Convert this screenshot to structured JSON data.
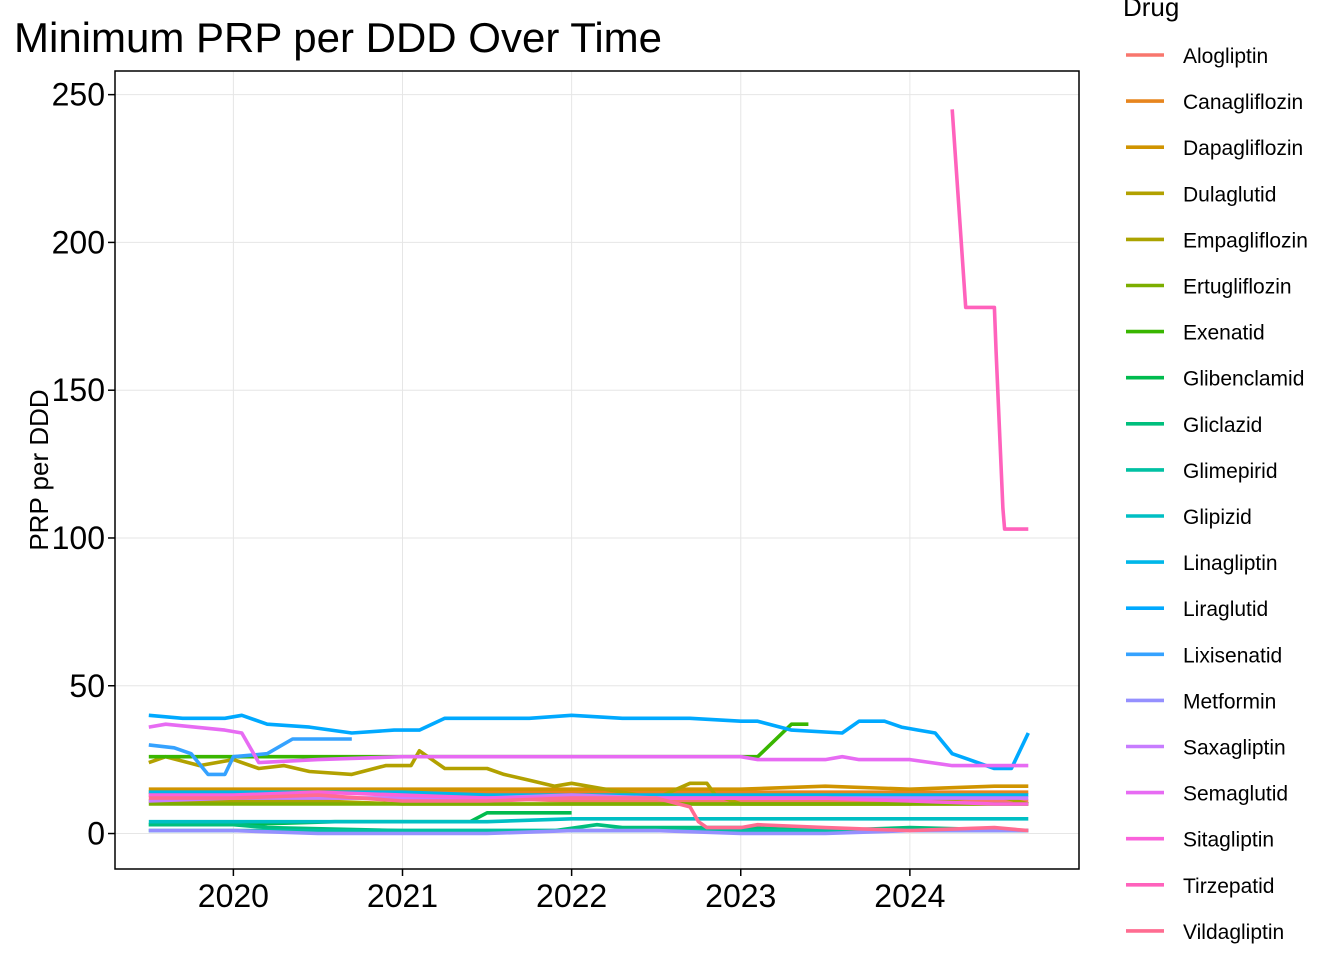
{
  "chart_data": {
    "type": "line",
    "title": "Minimum PRP per DDD Over Time",
    "xlabel": "",
    "ylabel": "PRP per DDD",
    "x_ticks": [
      "2020",
      "2021",
      "2022",
      "2023",
      "2024"
    ],
    "y_ticks": [
      0,
      50,
      100,
      150,
      200,
      250
    ],
    "xlim": [
      2019.3,
      2025.0
    ],
    "ylim": [
      -12,
      258
    ],
    "grid": true,
    "legend": {
      "title": "Drug",
      "position": "right"
    },
    "series": [
      {
        "name": "Alogliptin",
        "color": "#F8766D",
        "x": [
          2019.5,
          2020.0,
          2020.5,
          2021.0,
          2021.5,
          2022.0,
          2022.5,
          2023.0,
          2023.5,
          2024.0,
          2024.7
        ],
        "y": [
          13,
          12,
          12,
          12,
          12,
          11,
          11,
          11,
          11,
          11,
          11
        ]
      },
      {
        "name": "Canagliflozin",
        "color": "#E7851E",
        "x": [
          2019.5,
          2020.0,
          2020.5,
          2021.0,
          2021.5,
          2022.0,
          2022.5,
          2023.0,
          2023.5,
          2024.0,
          2024.7
        ],
        "y": [
          14,
          14,
          14,
          14,
          14,
          14,
          14,
          14,
          14,
          14,
          14
        ]
      },
      {
        "name": "Dapagliflozin",
        "color": "#D09400",
        "x": [
          2019.5,
          2020.0,
          2020.5,
          2021.0,
          2021.5,
          2022.0,
          2022.5,
          2023.0,
          2023.5,
          2024.0,
          2024.5,
          2024.7
        ],
        "y": [
          15,
          15,
          15,
          15,
          15,
          15,
          15,
          15,
          16,
          15,
          16,
          16
        ]
      },
      {
        "name": "Dulaglutid",
        "color": "#B2A100",
        "x": [
          2019.5,
          2019.6,
          2019.8,
          2020.0,
          2020.15,
          2020.3,
          2020.45,
          2020.7,
          2020.9,
          2021.05,
          2021.1,
          2021.25,
          2021.5,
          2021.6,
          2021.75,
          2021.9,
          2022.0,
          2022.5,
          2022.7,
          2022.8,
          2022.85,
          2022.95,
          2023.0,
          2023.5,
          2024.0,
          2024.7
        ],
        "y": [
          24,
          26,
          23,
          25,
          22,
          23,
          21,
          20,
          23,
          23,
          28,
          22,
          22,
          20,
          18,
          16,
          17,
          12,
          17,
          17,
          13,
          11,
          10,
          10,
          10,
          10
        ]
      },
      {
        "name": "Empagliflozin",
        "color": "#ABA300",
        "x": [
          2019.5,
          2020.0,
          2020.5,
          2021.0,
          2021.5,
          2022.0,
          2022.5,
          2023.0,
          2023.5,
          2024.0,
          2024.5,
          2024.7
        ],
        "y": [
          11,
          11,
          11,
          10,
          10,
          10,
          10,
          10,
          10,
          10,
          13,
          10
        ]
      },
      {
        "name": "Ertugliflozin",
        "color": "#7CAE00",
        "x": [
          2019.5,
          2020.0,
          2020.5,
          2021.0,
          2021.5,
          2022.0,
          2022.5,
          2023.0,
          2023.5,
          2024.0,
          2024.7
        ],
        "y": [
          10,
          10,
          10,
          10,
          10,
          10,
          10,
          10,
          10,
          10,
          10
        ]
      },
      {
        "name": "Exenatid",
        "color": "#39B600",
        "x": [
          2019.5,
          2020.0,
          2020.5,
          2021.0,
          2021.5,
          2022.0,
          2022.5,
          2023.0,
          2023.1,
          2023.3,
          2023.4
        ],
        "y": [
          26,
          26,
          26,
          26,
          26,
          26,
          26,
          26,
          26,
          37,
          37
        ]
      },
      {
        "name": "Glibenclamid",
        "color": "#00BB4E",
        "x": [
          2019.5,
          2020.0,
          2020.6,
          2021.0,
          2021.4,
          2021.5,
          2022.0
        ],
        "y": [
          3,
          3,
          4,
          4,
          4,
          7,
          7
        ]
      },
      {
        "name": "Gliclazid",
        "color": "#00BF7D",
        "x": [
          2019.5,
          2020.0,
          2020.2,
          2021.0,
          2021.9,
          2022.15,
          2022.3,
          2023.0,
          2023.5,
          2024.0,
          2024.7
        ],
        "y": [
          3,
          3,
          2,
          1,
          1,
          3,
          2,
          2,
          1,
          2,
          1
        ]
      },
      {
        "name": "Glimepirid",
        "color": "#00C1A3",
        "x": [
          2019.5,
          2020.0,
          2020.5,
          2021.0,
          2021.5,
          2022.0,
          2022.5,
          2023.0,
          2023.5,
          2024.0,
          2024.7
        ],
        "y": [
          1,
          1,
          1,
          1,
          1,
          1,
          1,
          1,
          1,
          1,
          1
        ]
      },
      {
        "name": "Glipizid",
        "color": "#00BFC4",
        "x": [
          2019.5,
          2020.0,
          2020.7,
          2021.0,
          2021.5,
          2022.0,
          2022.5,
          2023.0,
          2023.5,
          2024.0,
          2024.7
        ],
        "y": [
          4,
          4,
          4,
          4,
          4,
          5,
          5,
          5,
          5,
          5,
          5
        ]
      },
      {
        "name": "Linagliptin",
        "color": "#00B7E9",
        "x": [
          2019.5,
          2020.0,
          2020.5,
          2021.0,
          2021.5,
          2022.0,
          2022.5,
          2023.0,
          2023.5,
          2024.0,
          2024.5,
          2024.7
        ],
        "y": [
          14,
          14,
          14,
          14,
          13,
          13,
          13,
          13,
          13,
          13,
          13,
          13
        ]
      },
      {
        "name": "Liraglutid",
        "color": "#00A9FF",
        "x": [
          2019.5,
          2019.7,
          2019.95,
          2020.05,
          2020.2,
          2020.45,
          2020.7,
          2020.95,
          2021.1,
          2021.25,
          2021.5,
          2021.75,
          2022.0,
          2022.3,
          2022.7,
          2023.0,
          2023.1,
          2023.3,
          2023.6,
          2023.7,
          2023.85,
          2023.95,
          2024.05,
          2024.15,
          2024.25,
          2024.35,
          2024.5,
          2024.6,
          2024.7
        ],
        "y": [
          40,
          39,
          39,
          40,
          37,
          36,
          34,
          35,
          35,
          39,
          39,
          39,
          40,
          39,
          39,
          38,
          38,
          35,
          34,
          38,
          38,
          36,
          35,
          34,
          27,
          25,
          22,
          22,
          34
        ]
      },
      {
        "name": "Lixisenatid",
        "color": "#35A2FF",
        "x": [
          2019.5,
          2019.65,
          2019.75,
          2019.85,
          2019.95,
          2020.0,
          2020.2,
          2020.35,
          2020.7
        ],
        "y": [
          30,
          29,
          27,
          20,
          20,
          26,
          27,
          32,
          32
        ]
      },
      {
        "name": "Metformin",
        "color": "#9590FF",
        "x": [
          2019.5,
          2020.0,
          2020.5,
          2021.0,
          2021.5,
          2022.0,
          2022.5,
          2023.0,
          2023.5,
          2024.0,
          2024.7
        ],
        "y": [
          1,
          1,
          0,
          0,
          0,
          1,
          1,
          0,
          0,
          1,
          1
        ]
      },
      {
        "name": "Saxagliptin",
        "color": "#C77CFF",
        "x": [
          2019.5,
          2020.0,
          2020.5,
          2021.0,
          2021.5,
          2022.0,
          2022.5,
          2023.0,
          2023.5,
          2024.0,
          2024.7
        ],
        "y": [
          11,
          12,
          12,
          12,
          12,
          13,
          12,
          12,
          12,
          12,
          12
        ]
      },
      {
        "name": "Semaglutid",
        "color": "#E76BF3",
        "x": [
          2019.5,
          2019.6,
          2019.95,
          2020.05,
          2020.15,
          2020.5,
          2021.0,
          2021.5,
          2022.0,
          2022.5,
          2023.0,
          2023.1,
          2023.5,
          2023.6,
          2023.7,
          2024.0,
          2024.25,
          2024.5,
          2024.7
        ],
        "y": [
          36,
          37,
          35,
          34,
          24,
          25,
          26,
          26,
          26,
          26,
          26,
          25,
          25,
          26,
          25,
          25,
          23,
          23,
          23
        ]
      },
      {
        "name": "Sitagliptin",
        "color": "#FA62DB",
        "x": [
          2019.5,
          2020.0,
          2020.5,
          2021.0,
          2021.5,
          2022.0,
          2022.5,
          2023.0,
          2023.5,
          2024.0,
          2024.5,
          2024.7
        ],
        "y": [
          13,
          13,
          14,
          13,
          12,
          12,
          12,
          12,
          12,
          11,
          10,
          10
        ]
      },
      {
        "name": "Tirzepatid",
        "color": "#FF62BC",
        "x": [
          2024.25,
          2024.33,
          2024.34,
          2024.5,
          2024.51,
          2024.55,
          2024.56,
          2024.58,
          2024.7
        ],
        "y": [
          245,
          178,
          178,
          178,
          163,
          110,
          103,
          103,
          103
        ]
      },
      {
        "name": "Vildagliptin",
        "color": "#FF6C91",
        "x": [
          2019.5,
          2020.0,
          2020.5,
          2021.0,
          2021.5,
          2022.0,
          2022.5,
          2022.7,
          2022.75,
          2022.8,
          2023.0,
          2023.1,
          2023.5,
          2024.0,
          2024.5,
          2024.7
        ],
        "y": [
          12,
          12,
          13,
          11,
          11,
          12,
          12,
          9,
          4,
          2,
          2,
          3,
          2,
          1,
          2,
          1
        ]
      }
    ]
  }
}
